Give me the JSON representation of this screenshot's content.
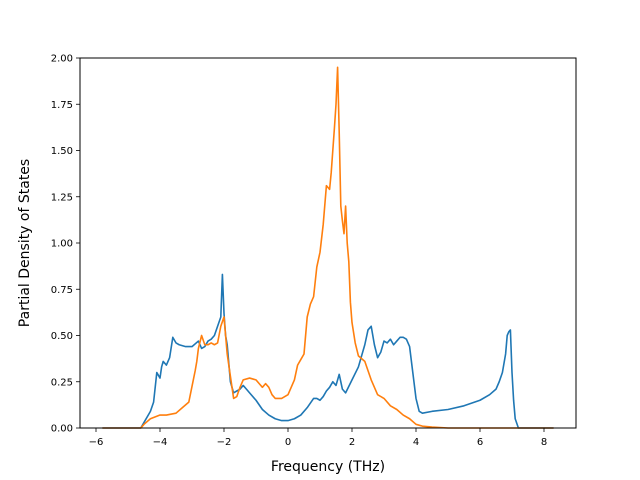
{
  "chart_data": {
    "type": "line",
    "xlabel": "Frequency (THz)",
    "ylabel": "Partial Density of States",
    "xlim": [
      -6.5,
      9.0
    ],
    "ylim": [
      0.0,
      2.0
    ],
    "xticks": [
      -6,
      -4,
      -2,
      0,
      2,
      4,
      6,
      8
    ],
    "xtick_labels": [
      "−6",
      "−4",
      "−2",
      "0",
      "2",
      "4",
      "6",
      "8"
    ],
    "yticks": [
      0.0,
      0.25,
      0.5,
      0.75,
      1.0,
      1.25,
      1.5,
      1.75,
      2.0
    ],
    "ytick_labels": [
      "0.00",
      "0.25",
      "0.50",
      "0.75",
      "1.00",
      "1.25",
      "1.50",
      "1.75",
      "2.00"
    ],
    "grid": false,
    "series": [
      {
        "color": "#1f77b4",
        "x": [
          -5.8,
          -4.6,
          -4.5,
          -4.3,
          -4.2,
          -4.1,
          -4.0,
          -3.95,
          -3.9,
          -3.8,
          -3.7,
          -3.6,
          -3.5,
          -3.4,
          -3.2,
          -3.0,
          -2.8,
          -2.7,
          -2.6,
          -2.5,
          -2.4,
          -2.3,
          -2.2,
          -2.1,
          -2.05,
          -2.0,
          -1.95,
          -1.9,
          -1.8,
          -1.7,
          -1.6,
          -1.5,
          -1.4,
          -1.3,
          -1.2,
          -1.0,
          -0.8,
          -0.6,
          -0.4,
          -0.2,
          0.0,
          0.2,
          0.4,
          0.6,
          0.8,
          0.9,
          1.0,
          1.1,
          1.2,
          1.3,
          1.4,
          1.5,
          1.6,
          1.7,
          1.8,
          2.0,
          2.2,
          2.4,
          2.5,
          2.6,
          2.7,
          2.8,
          2.9,
          3.0,
          3.1,
          3.2,
          3.3,
          3.4,
          3.5,
          3.6,
          3.7,
          3.8,
          3.9,
          4.0,
          4.1,
          4.2,
          4.5,
          5.0,
          5.5,
          6.0,
          6.3,
          6.5,
          6.6,
          6.7,
          6.8,
          6.85,
          6.9,
          6.95,
          7.0,
          7.05,
          7.1,
          7.2,
          7.3,
          8.3
        ],
        "y": [
          0.0,
          0.0,
          0.03,
          0.09,
          0.14,
          0.3,
          0.27,
          0.33,
          0.36,
          0.34,
          0.38,
          0.49,
          0.46,
          0.45,
          0.44,
          0.44,
          0.47,
          0.43,
          0.44,
          0.47,
          0.48,
          0.5,
          0.55,
          0.6,
          0.83,
          0.62,
          0.5,
          0.45,
          0.25,
          0.19,
          0.2,
          0.21,
          0.23,
          0.21,
          0.19,
          0.15,
          0.1,
          0.07,
          0.05,
          0.04,
          0.04,
          0.05,
          0.07,
          0.11,
          0.16,
          0.16,
          0.15,
          0.17,
          0.2,
          0.22,
          0.25,
          0.23,
          0.29,
          0.21,
          0.19,
          0.26,
          0.33,
          0.45,
          0.53,
          0.55,
          0.45,
          0.38,
          0.41,
          0.47,
          0.46,
          0.48,
          0.45,
          0.47,
          0.49,
          0.49,
          0.48,
          0.44,
          0.3,
          0.16,
          0.09,
          0.08,
          0.09,
          0.1,
          0.12,
          0.15,
          0.18,
          0.21,
          0.25,
          0.3,
          0.4,
          0.5,
          0.52,
          0.53,
          0.3,
          0.15,
          0.05,
          0.0,
          0.0,
          0.0
        ]
      },
      {
        "color": "#ff7f0e",
        "x": [
          -5.8,
          -4.6,
          -4.5,
          -4.3,
          -4.0,
          -3.8,
          -3.5,
          -3.3,
          -3.1,
          -2.9,
          -2.85,
          -2.8,
          -2.7,
          -2.6,
          -2.5,
          -2.4,
          -2.3,
          -2.2,
          -2.1,
          -2.0,
          -1.9,
          -1.8,
          -1.7,
          -1.6,
          -1.5,
          -1.4,
          -1.2,
          -1.0,
          -0.9,
          -0.8,
          -0.7,
          -0.6,
          -0.5,
          -0.4,
          -0.2,
          0.0,
          0.1,
          0.2,
          0.3,
          0.4,
          0.5,
          0.6,
          0.7,
          0.8,
          0.9,
          1.0,
          1.1,
          1.2,
          1.3,
          1.35,
          1.4,
          1.45,
          1.5,
          1.55,
          1.6,
          1.65,
          1.7,
          1.75,
          1.8,
          1.85,
          1.9,
          1.95,
          2.0,
          2.1,
          2.2,
          2.4,
          2.6,
          2.8,
          3.0,
          3.2,
          3.4,
          3.6,
          3.8,
          4.0,
          4.2,
          4.5,
          5.0,
          6.0,
          7.0,
          8.3
        ],
        "y": [
          0.0,
          0.0,
          0.02,
          0.05,
          0.07,
          0.07,
          0.08,
          0.11,
          0.14,
          0.31,
          0.36,
          0.43,
          0.5,
          0.45,
          0.45,
          0.46,
          0.45,
          0.46,
          0.55,
          0.6,
          0.4,
          0.28,
          0.16,
          0.17,
          0.22,
          0.26,
          0.27,
          0.26,
          0.24,
          0.22,
          0.24,
          0.22,
          0.18,
          0.16,
          0.16,
          0.18,
          0.22,
          0.26,
          0.34,
          0.37,
          0.4,
          0.6,
          0.67,
          0.71,
          0.87,
          0.95,
          1.1,
          1.31,
          1.29,
          1.38,
          1.5,
          1.62,
          1.75,
          1.95,
          1.6,
          1.2,
          1.12,
          1.05,
          1.2,
          1.0,
          0.9,
          0.68,
          0.57,
          0.46,
          0.39,
          0.36,
          0.26,
          0.18,
          0.16,
          0.12,
          0.1,
          0.07,
          0.05,
          0.02,
          0.01,
          0.005,
          0.0,
          0.0,
          0.0,
          0.0
        ]
      }
    ]
  }
}
